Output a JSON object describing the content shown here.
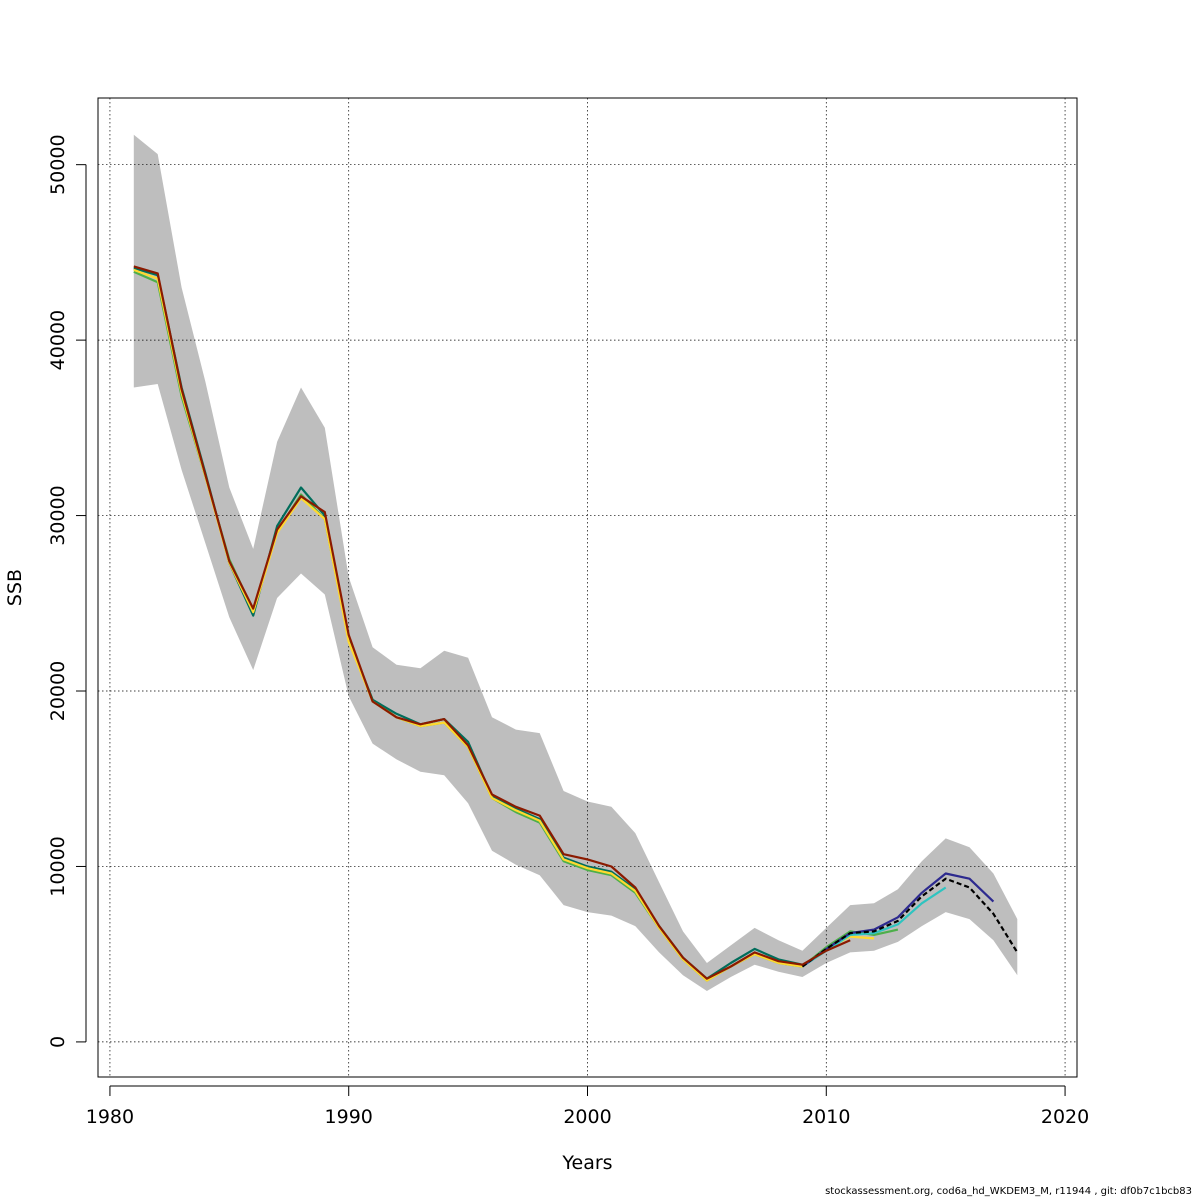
{
  "chart_data": {
    "type": "line",
    "xlabel": "Years",
    "ylabel": "SSB",
    "xlim": [
      1979.5,
      2020.5
    ],
    "ylim": [
      -2000,
      53800
    ],
    "x_ticks": [
      1980,
      1990,
      2000,
      2010,
      2020
    ],
    "y_ticks": [
      0,
      10000,
      20000,
      30000,
      40000,
      50000
    ],
    "grid": true,
    "band": {
      "color": "#bebebe",
      "x": [
        1981,
        1982,
        1983,
        1984,
        1985,
        1986,
        1987,
        1988,
        1989,
        1990,
        1991,
        1992,
        1993,
        1994,
        1995,
        1996,
        1997,
        1998,
        1999,
        2000,
        2001,
        2002,
        2003,
        2004,
        2005,
        2006,
        2007,
        2008,
        2009,
        2010,
        2011,
        2012,
        2013,
        2014,
        2015,
        2016,
        2017,
        2018
      ],
      "upper": [
        51700,
        50600,
        43000,
        37600,
        31600,
        28100,
        34200,
        37300,
        35000,
        26500,
        22500,
        21500,
        21300,
        22300,
        21900,
        18500,
        17800,
        17600,
        14300,
        13700,
        13400,
        11900,
        9100,
        6300,
        4500,
        5500,
        6500,
        5800,
        5200,
        6500,
        7800,
        7900,
        8700,
        10300,
        11600,
        11100,
        9600,
        7000
      ],
      "lower": [
        37300,
        37500,
        32600,
        28400,
        24200,
        21200,
        25300,
        26700,
        25500,
        19700,
        17000,
        16100,
        15400,
        15200,
        13600,
        10900,
        10100,
        9500,
        7800,
        7400,
        7200,
        6600,
        5100,
        3800,
        2900,
        3700,
        4400,
        4000,
        3700,
        4500,
        5100,
        5200,
        5700,
        6600,
        7400,
        7000,
        5800,
        3800
      ]
    },
    "series": [
      {
        "color": "#4daf4a",
        "x": [
          1981,
          1982,
          1983,
          1984,
          1985,
          1986,
          1987,
          1988,
          1989,
          1990,
          1991,
          1992,
          1993,
          1994,
          1995,
          1996,
          1997,
          1998,
          1999,
          2000,
          2001,
          2002,
          2003,
          2004,
          2005,
          2006,
          2007,
          2008,
          2009,
          2010,
          2011,
          2012,
          2013
        ],
        "values": [
          43900,
          43300,
          36800,
          32200,
          27500,
          24600,
          29100,
          31200,
          29800,
          22900,
          19500,
          18500,
          18000,
          18200,
          16800,
          13900,
          13100,
          12500,
          10300,
          9800,
          9500,
          8500,
          6500,
          4700,
          3500,
          4300,
          5000,
          4500,
          4300,
          5400,
          6300,
          6100,
          6400
        ]
      },
      {
        "color": "#006d5b",
        "x": [
          1981,
          1982,
          1983,
          1984,
          1985,
          1986,
          1987,
          1988,
          1989,
          1990,
          1991,
          1992,
          1993,
          1994,
          1995,
          1996,
          1997,
          1998,
          1999,
          2000,
          2001,
          2002,
          2003,
          2004,
          2005,
          2006,
          2007,
          2008,
          2009
        ],
        "values": [
          44100,
          43700,
          37300,
          32400,
          27300,
          24300,
          29400,
          31600,
          30000,
          23000,
          19500,
          18700,
          18100,
          18400,
          17100,
          14000,
          13300,
          12700,
          10500,
          10000,
          9700,
          8700,
          6600,
          4800,
          3600,
          4500,
          5300,
          4700,
          4400
        ]
      },
      {
        "color": "#ffd92f",
        "x": [
          1981,
          1982,
          1983,
          1984,
          1985,
          1986,
          1987,
          1988,
          1989,
          1990,
          1991,
          1992,
          1993,
          1994,
          1995,
          1996,
          1997,
          1998,
          1999,
          2000,
          2001,
          2002,
          2003,
          2004,
          2005,
          2006,
          2007,
          2008,
          2009,
          2010,
          2011,
          2012
        ],
        "values": [
          44000,
          43500,
          37000,
          32200,
          27300,
          24500,
          29000,
          31000,
          29800,
          22800,
          19400,
          18500,
          18000,
          18200,
          16800,
          13900,
          13200,
          12600,
          10400,
          9900,
          9600,
          8600,
          6500,
          4700,
          3500,
          4300,
          5000,
          4500,
          4300,
          5300,
          6000,
          5900
        ]
      },
      {
        "color": "#2ec4c0",
        "x": [
          2009,
          2010,
          2011,
          2012,
          2013,
          2014,
          2015
        ],
        "values": [
          4300,
          5200,
          6100,
          6200,
          6700,
          7900,
          8800
        ]
      },
      {
        "color": "#2d2a8f",
        "x": [
          2009,
          2010,
          2011,
          2012,
          2013,
          2014,
          2015,
          2016,
          2017
        ],
        "values": [
          4300,
          5300,
          6200,
          6400,
          7100,
          8500,
          9600,
          9300,
          8000
        ]
      },
      {
        "color": "#000000",
        "dashed": true,
        "x": [
          2009,
          2010,
          2011,
          2012,
          2013,
          2014,
          2015,
          2016,
          2017,
          2018
        ],
        "values": [
          4300,
          5300,
          6200,
          6300,
          6900,
          8300,
          9300,
          8800,
          7300,
          5100
        ]
      },
      {
        "color": "#8b1a00",
        "x": [
          1981,
          1982,
          1983,
          1984,
          1985,
          1986,
          1987,
          1988,
          1989,
          1990,
          1991,
          1992,
          1993,
          1994,
          1995,
          1996,
          1997,
          1998,
          1999,
          2000,
          2001,
          2002,
          2003,
          2004,
          2005,
          2006,
          2007,
          2008,
          2009,
          2010,
          2011
        ],
        "values": [
          44200,
          43800,
          37200,
          32300,
          27400,
          24700,
          29200,
          31100,
          30200,
          23200,
          19400,
          18500,
          18100,
          18400,
          16900,
          14100,
          13400,
          12900,
          10700,
          10400,
          10000,
          8800,
          6600,
          4800,
          3600,
          4300,
          5100,
          4600,
          4400,
          5200,
          5800
        ]
      }
    ]
  },
  "footer": "stockassessment.org, cod6a_hd_WKDEM3_M, r11944 , git: df0b7c1bcb83"
}
